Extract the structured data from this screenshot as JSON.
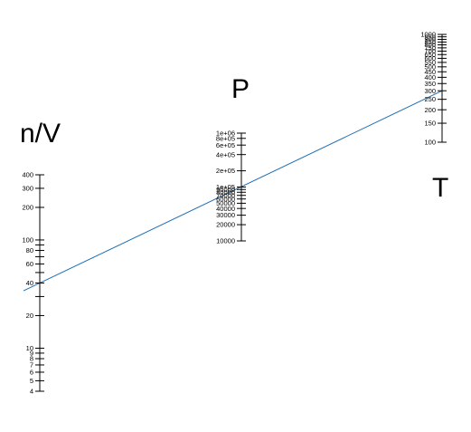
{
  "chart_data": {
    "type": "nomogram",
    "title": "",
    "scales": [
      {
        "id": "nv",
        "name": "n/V",
        "scale": "log",
        "range": [
          4,
          400
        ],
        "ticks": [
          4,
          5,
          6,
          7,
          8,
          9,
          10,
          20,
          30,
          40,
          50,
          60,
          70,
          80,
          90,
          100,
          200,
          300,
          400
        ],
        "tick_labels": [
          "4",
          "5",
          "6",
          "7",
          "8",
          "9",
          "10",
          "20",
          "",
          "40",
          "",
          "60",
          "",
          "80",
          "",
          "100",
          "200",
          "300",
          "400"
        ]
      },
      {
        "id": "p",
        "name": "P",
        "scale": "log",
        "range": [
          10000,
          1000000
        ],
        "ticks": [
          10000,
          20000,
          30000,
          40000,
          50000,
          60000,
          70000,
          80000,
          90000,
          100000,
          200000,
          400000,
          600000,
          800000,
          1000000
        ],
        "tick_labels": [
          "10000",
          "20000",
          "30000",
          "40000",
          "50000",
          "60000",
          "70000",
          "80000",
          "90000",
          "1e+05",
          "2e+05",
          "4e+05",
          "6e+05",
          "8e+05",
          "1e+06"
        ]
      },
      {
        "id": "t",
        "name": "T",
        "scale": "log",
        "range": [
          100,
          1000
        ],
        "ticks": [
          100,
          150,
          200,
          250,
          300,
          350,
          400,
          450,
          500,
          550,
          600,
          650,
          700,
          750,
          800,
          850,
          900,
          950,
          1000
        ],
        "tick_labels": [
          "100",
          "150",
          "200",
          "250",
          "300",
          "350",
          "400",
          "450",
          "500",
          "550",
          "600",
          "650",
          "700",
          "750",
          "800",
          "850",
          "900",
          "950",
          "1000"
        ]
      }
    ],
    "isopleth": {
      "nv": 40,
      "p": 100000,
      "t": 300,
      "color": "#1f6fb4"
    }
  }
}
